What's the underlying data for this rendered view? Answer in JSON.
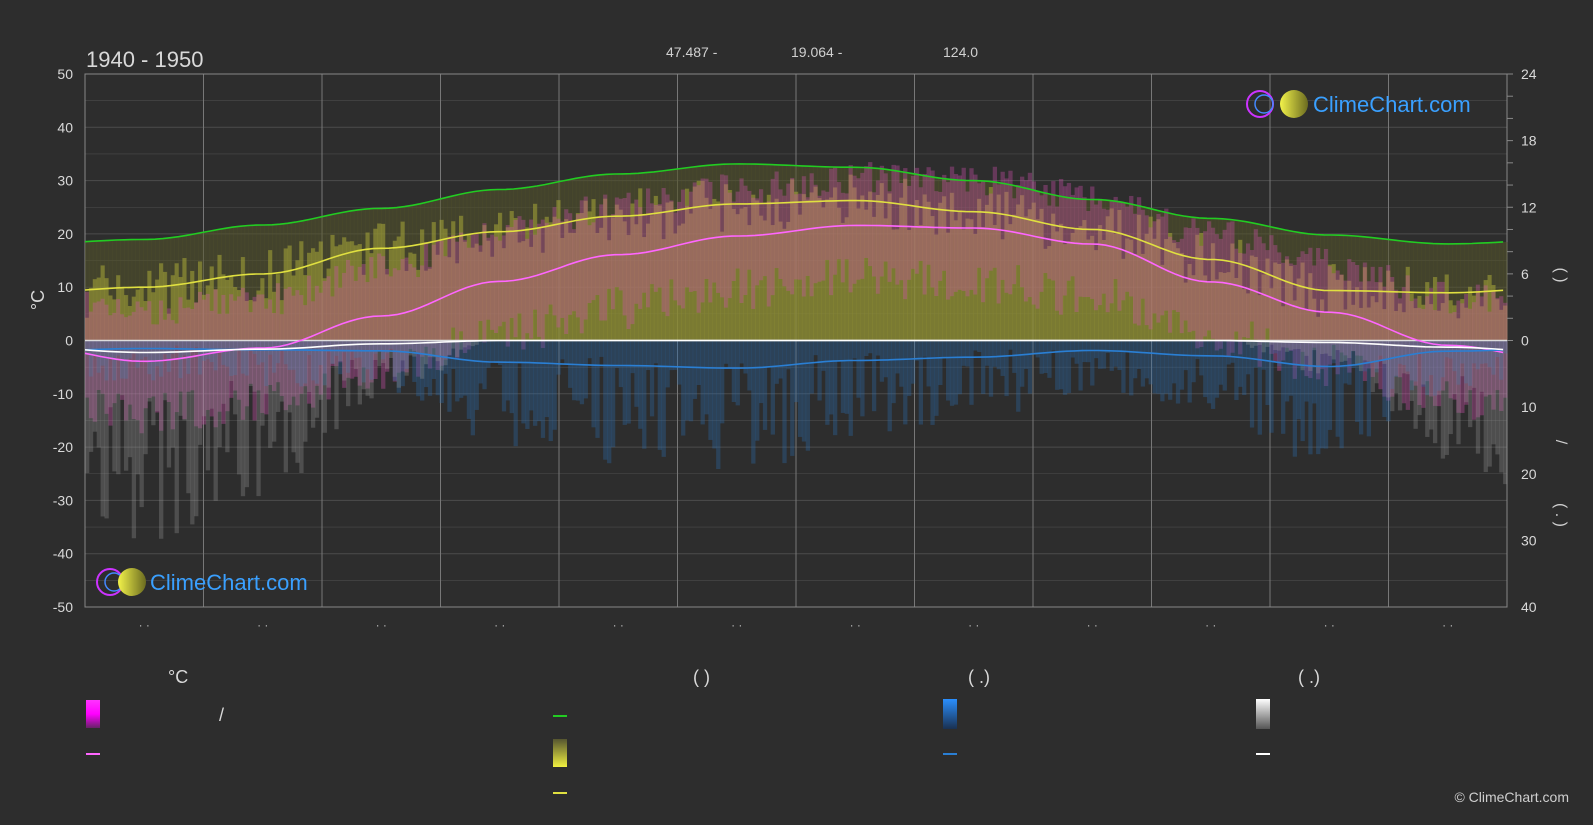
{
  "header": {
    "period": "1940 - 1950",
    "lat": "47.487 -",
    "lon": "19.064 -",
    "elevation": "124.0"
  },
  "brand": {
    "text": "ClimeChart.com",
    "copyright": "© ClimeChart.com"
  },
  "axes": {
    "left_label": "°C",
    "left_ticks": [
      "50",
      "40",
      "30",
      "20",
      "10",
      "0",
      "-10",
      "-20",
      "-30",
      "-40",
      "-50"
    ],
    "right_top_ticks": [
      "24",
      "18",
      "12",
      "6",
      "0"
    ],
    "right_bottom_ticks": [
      "10",
      "20",
      "30",
      "40"
    ],
    "right_top_label": "(    )",
    "right_mid_label": "/",
    "right_bottom_label": "(  .  )",
    "month_ticks": [
      "· ·",
      "· ·",
      "· ·",
      "· ·",
      "· ·",
      "· ·",
      "· ·",
      "· ·",
      "· ·",
      "· ·",
      "· ·",
      "· ·"
    ]
  },
  "legend": {
    "col1_title": "°C",
    "col1_row1": "/",
    "col2_title": "(            )",
    "col3_title": "(    .)",
    "col4_title": "(    .)"
  },
  "colors": {
    "background": "#2d2d2d",
    "grid": "#555555",
    "daylight": "#22cc22",
    "sunshine": "#e0e040",
    "temp_max": "#ff66ff",
    "temp_min": "#ff00ff",
    "precip": "#2a7fd4",
    "snow": "#ffffff"
  },
  "chart_data": {
    "type": "line",
    "x": [
      "Jan",
      "Feb",
      "Mar",
      "Apr",
      "May",
      "Jun",
      "Jul",
      "Aug",
      "Sep",
      "Oct",
      "Nov",
      "Dec"
    ],
    "left_axis_ylim": [
      -50,
      50
    ],
    "right_top_ylim_hours": [
      0,
      24
    ],
    "right_bottom_ylim_mm": [
      0,
      40
    ],
    "series": [
      {
        "key": "daylight_hours",
        "values": [
          9.1,
          10.4,
          11.9,
          13.6,
          15.0,
          15.9,
          15.6,
          14.4,
          12.7,
          11.0,
          9.5,
          8.7
        ]
      },
      {
        "key": "sunshine_hours",
        "values": [
          4.8,
          6.0,
          8.3,
          9.8,
          11.2,
          12.3,
          12.6,
          11.6,
          10.0,
          7.3,
          4.5,
          4.3
        ]
      },
      {
        "key": "temp_mean_c",
        "values": [
          -3.9,
          -1.4,
          4.6,
          11.1,
          16.1,
          19.6,
          21.6,
          21.1,
          18.1,
          11.0,
          5.3,
          -0.9
        ]
      },
      {
        "key": "precip_mm",
        "values": [
          2.4,
          2.8,
          3.1,
          6.5,
          7.5,
          8.3,
          6.0,
          5.0,
          3.0,
          4.6,
          7.8,
          3.2
        ]
      },
      {
        "key": "snow_mm",
        "values": [
          1.8,
          1.3,
          0.5,
          0.0,
          0.0,
          0.0,
          0.0,
          0.0,
          0.0,
          0.0,
          0.3,
          1.0
        ]
      }
    ]
  }
}
